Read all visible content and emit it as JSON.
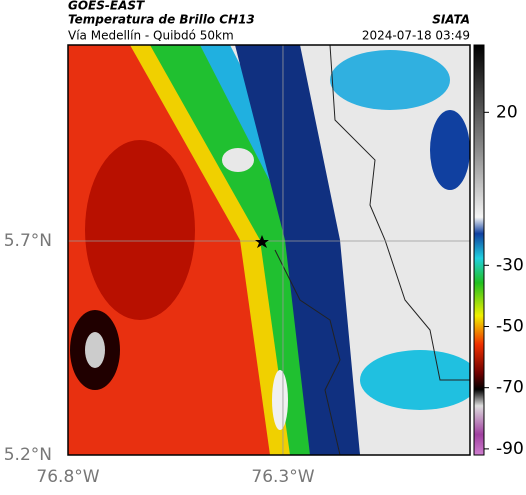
{
  "header": {
    "title": "GOES-EAST",
    "subtitle": "Temperatura de Brillo CH13",
    "source": "SIATA",
    "region": "Vía Medellín - Quibdó 50km",
    "timestamp": "2024-07-18 03:49"
  },
  "map": {
    "xlim": [
      -76.8,
      -75.865
    ],
    "ylim": [
      5.2,
      6.158
    ],
    "xticks": [
      {
        "value": -76.8,
        "label": "76.8°W"
      },
      {
        "value": -76.3,
        "label": "76.3°W"
      }
    ],
    "yticks": [
      {
        "value": 5.2,
        "label": "5.2°N"
      },
      {
        "value": 5.7,
        "label": "5.7°N"
      }
    ],
    "grid": true
  },
  "colorbar": {
    "lim": [
      -92,
      42
    ],
    "ticks": [
      20,
      -30,
      -50,
      -70,
      -90
    ]
  }
}
